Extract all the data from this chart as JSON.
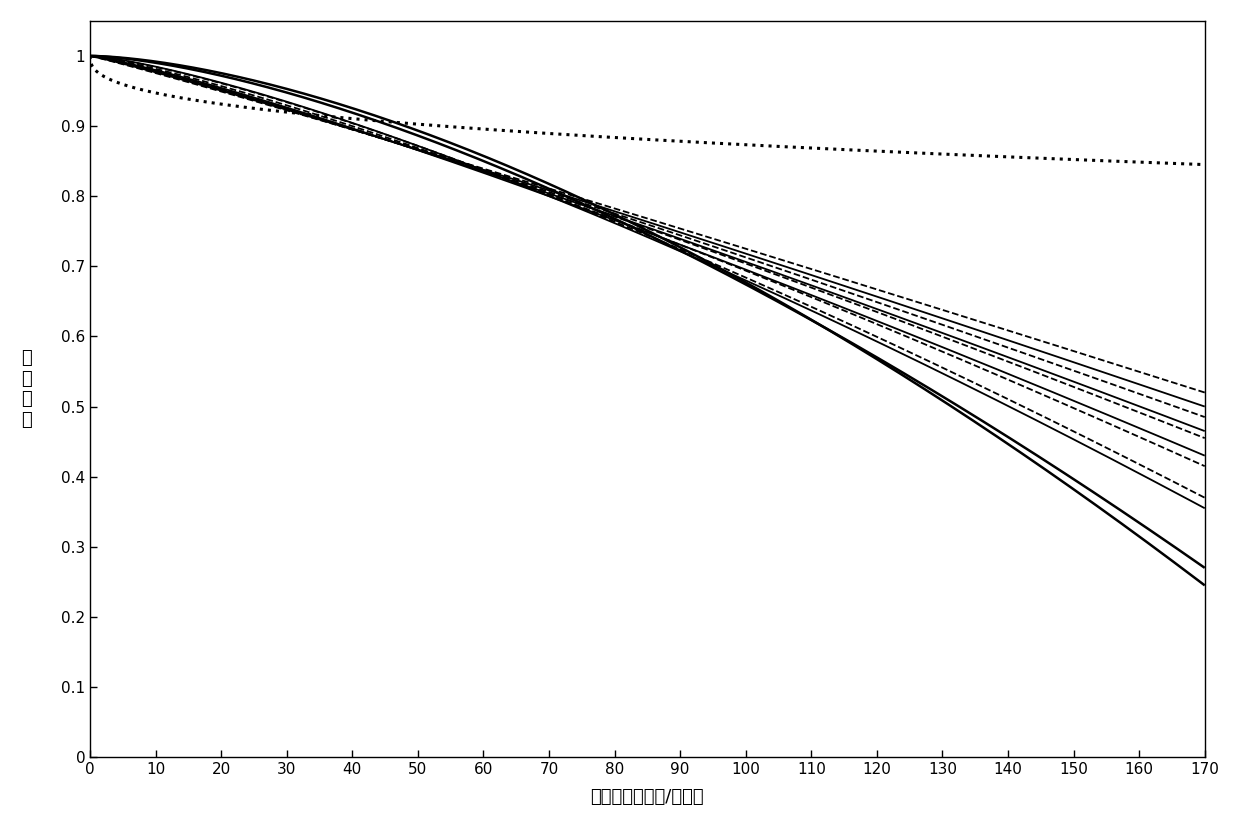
{
  "xlabel": "空间频率（线对/毫米）",
  "ylabel": "传\n函\n数\n値",
  "xlim": [
    0,
    170
  ],
  "ylim": [
    0,
    1.05
  ],
  "xticks": [
    0,
    10,
    20,
    30,
    40,
    50,
    60,
    70,
    80,
    90,
    100,
    110,
    120,
    130,
    140,
    150,
    160,
    170
  ],
  "yticks": [
    0,
    0.1,
    0.2,
    0.3,
    0.4,
    0.5,
    0.6,
    0.7,
    0.8,
    0.9,
    1
  ],
  "background_color": "#ffffff",
  "curves": [
    {
      "type": "dotted",
      "lw": 2.0,
      "end_value": 0.845,
      "power": 0.38
    },
    {
      "type": "dashed",
      "lw": 1.3,
      "end_value": 0.52,
      "power": 1.05
    },
    {
      "type": "dashed",
      "lw": 1.3,
      "end_value": 0.485,
      "power": 1.1
    },
    {
      "type": "dashed",
      "lw": 1.3,
      "end_value": 0.455,
      "power": 1.15
    },
    {
      "type": "dashed",
      "lw": 1.3,
      "end_value": 0.415,
      "power": 1.22
    },
    {
      "type": "dashed",
      "lw": 1.3,
      "end_value": 0.37,
      "power": 1.3
    },
    {
      "type": "solid",
      "lw": 1.3,
      "end_value": 0.5,
      "power": 1.08
    },
    {
      "type": "solid",
      "lw": 1.3,
      "end_value": 0.465,
      "power": 1.13
    },
    {
      "type": "solid",
      "lw": 1.3,
      "end_value": 0.43,
      "power": 1.18
    },
    {
      "type": "solid",
      "lw": 1.3,
      "end_value": 0.355,
      "power": 1.32
    },
    {
      "type": "solid",
      "lw": 1.8,
      "end_value": 0.27,
      "power": 1.52
    },
    {
      "type": "solid",
      "lw": 1.8,
      "end_value": 0.245,
      "power": 1.6
    }
  ],
  "axis_fontsize": 13,
  "tick_fontsize": 11
}
